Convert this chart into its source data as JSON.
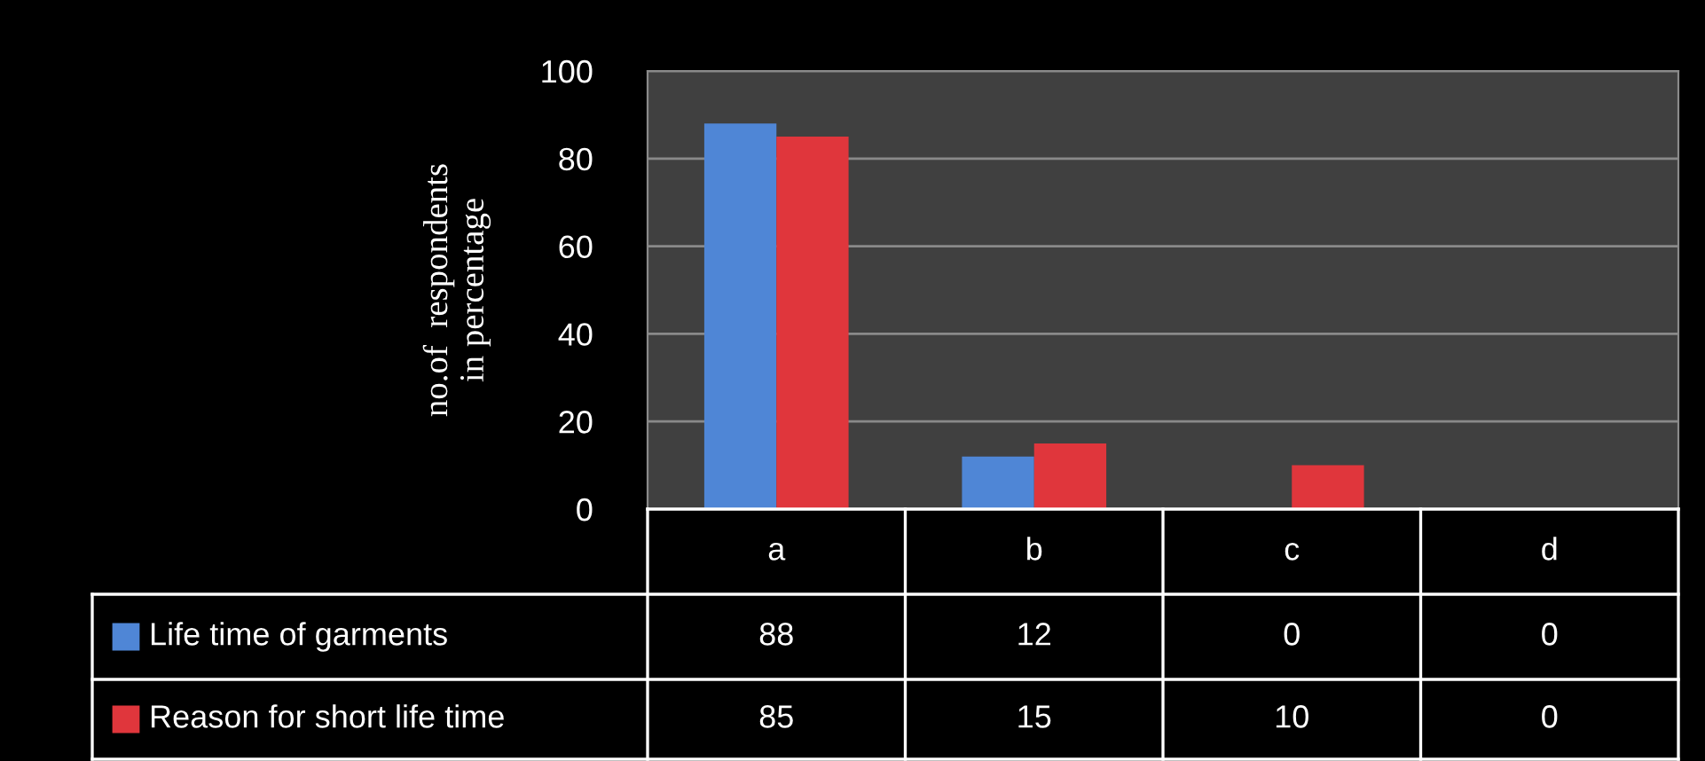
{
  "chart_data": {
    "type": "bar",
    "ylabel": "no.of  respondents\nin percentage",
    "categories": [
      "a",
      "b",
      "c",
      "d"
    ],
    "series": [
      {
        "name": "Life time of garments",
        "color": "#4f86d6",
        "values": [
          88,
          12,
          0,
          0
        ]
      },
      {
        "name": "Reason for short life time",
        "color": "#e0363c",
        "values": [
          85,
          15,
          10,
          0
        ]
      }
    ],
    "ylim": [
      0,
      100
    ],
    "yticks": [
      0,
      20,
      40,
      60,
      80,
      100
    ],
    "grid": "y",
    "legend": "bottom",
    "data_labels": true
  }
}
